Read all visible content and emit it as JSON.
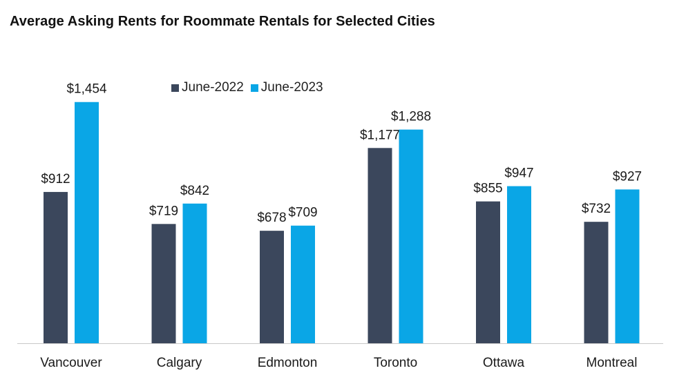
{
  "chart_data": {
    "type": "bar",
    "title": "Average Asking Rents for Roommate Rentals for Selected Cities",
    "xlabel": "",
    "ylabel": "",
    "ylim": [
      0,
      1500
    ],
    "grid": false,
    "legend_position": "top",
    "categories": [
      "Vancouver",
      "Calgary",
      "Edmonton",
      "Toronto",
      "Ottawa",
      "Montreal"
    ],
    "series": [
      {
        "name": "June-2022",
        "color": "#3b475c",
        "values": [
          912,
          719,
          678,
          1177,
          855,
          732
        ],
        "labels": [
          "$912",
          "$719",
          "$678",
          "$1,177",
          "$855",
          "$732"
        ]
      },
      {
        "name": "June-2023",
        "color": "#0aa6e6",
        "values": [
          1454,
          842,
          709,
          1288,
          947,
          927
        ],
        "labels": [
          "$1,454",
          "$842",
          "$709",
          "$1,288",
          "$947",
          "$927"
        ]
      }
    ]
  }
}
